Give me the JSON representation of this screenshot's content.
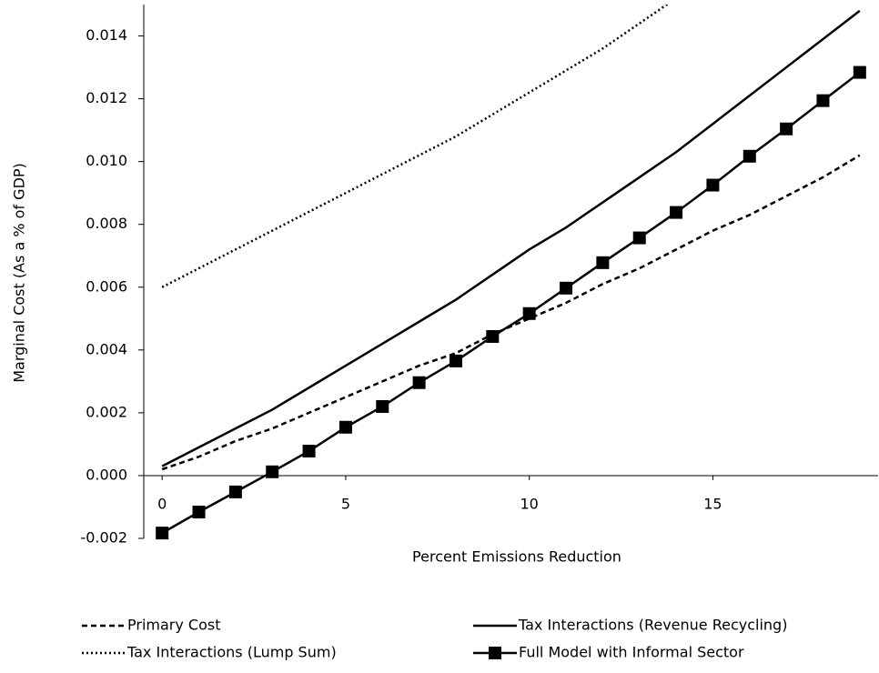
{
  "chart_data": {
    "type": "line",
    "x_label": "Percent Emissions Reduction",
    "y_label": "Marginal Cost (As a % of GDP)",
    "x": [
      0,
      1,
      2,
      3,
      4,
      5,
      6,
      7,
      8,
      9,
      10,
      11,
      12,
      13,
      14,
      15,
      16,
      17,
      18,
      19
    ],
    "xlim": [
      -0.5,
      19.5
    ],
    "xticks": [
      0,
      5,
      10,
      15
    ],
    "ylim": [
      -0.002,
      0.015
    ],
    "yticks": [
      {
        "value": -0.002,
        "label": "-0.002"
      },
      {
        "value": 0,
        "label": "0.000"
      },
      {
        "value": 0.002,
        "label": "0.002"
      },
      {
        "value": 0.004,
        "label": "0.004"
      },
      {
        "value": 0.006,
        "label": "0.006"
      },
      {
        "value": 0.008,
        "label": "0.008"
      },
      {
        "value": 0.01,
        "label": "0.010"
      },
      {
        "value": 0.012,
        "label": "0.012"
      },
      {
        "value": 0.014,
        "label": "0.014"
      }
    ],
    "grid": false,
    "legend": "bottom",
    "series": [
      {
        "name": "Primary Cost",
        "color": "#000000",
        "line_style": "dashed",
        "marker": "none",
        "values": [
          0.0002,
          0.0006,
          0.0011,
          0.0015,
          0.002,
          0.0025,
          0.003,
          0.0035,
          0.0039,
          0.0045,
          0.005,
          0.0055,
          0.0061,
          0.0066,
          0.0072,
          0.0078,
          0.0083,
          0.0089,
          0.0095,
          0.0102
        ]
      },
      {
        "name": "Tax Interactions (Revenue Recycling)",
        "color": "#000000",
        "line_style": "solid",
        "marker": "none",
        "values": [
          0.0003,
          0.0009,
          0.0015,
          0.0021,
          0.0028,
          0.0035,
          0.0042,
          0.0049,
          0.0056,
          0.0064,
          0.0072,
          0.0079,
          0.0087,
          0.0095,
          0.0103,
          0.0112,
          0.0121,
          0.013,
          0.0139,
          0.0148
        ]
      },
      {
        "name": "Tax Interactions (Lump Sum)",
        "color": "#000000",
        "line_style": "dotted",
        "marker": "none",
        "values": [
          0.006,
          0.0066,
          0.0072,
          0.0078,
          0.0084,
          0.009,
          0.0096,
          0.0102,
          0.0108,
          0.0115,
          0.0122,
          0.0129,
          0.0136,
          0.0144,
          0.0152,
          null,
          null,
          null,
          null,
          null
        ]
      },
      {
        "name": "Full Model with Informal Sector",
        "color": "#000000",
        "line_style": "solid",
        "marker": "square",
        "values": [
          -0.00183,
          -0.00116,
          -0.00052,
          0.00012,
          0.00078,
          0.00154,
          0.0022,
          0.00296,
          0.00365,
          0.00443,
          0.00516,
          0.00597,
          0.00678,
          0.00757,
          0.00838,
          0.00925,
          0.01017,
          0.01104,
          0.01194,
          0.01284
        ]
      }
    ]
  }
}
